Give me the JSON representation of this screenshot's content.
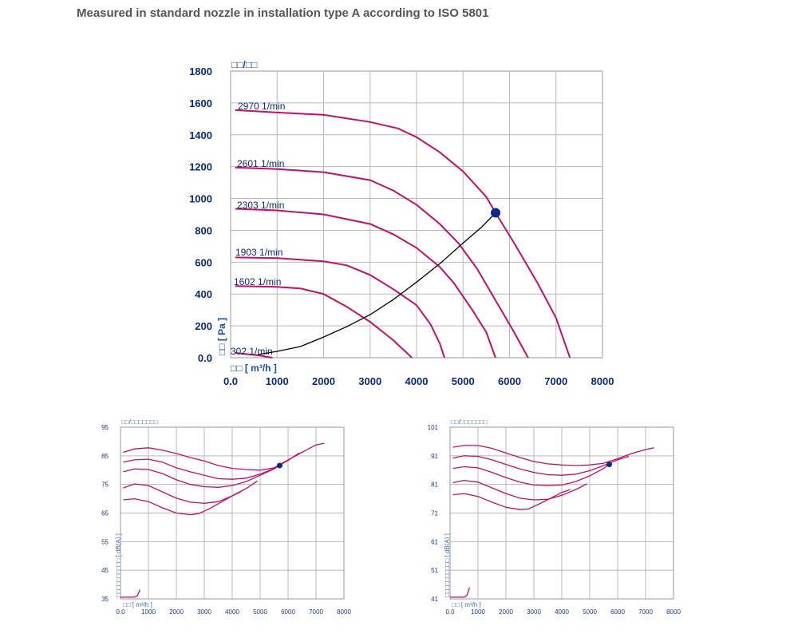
{
  "page": {
    "title": "Measured in standard nozzle in installation type A according to ISO 5801"
  },
  "colors": {
    "curve": "#c0106a",
    "operating_point": "#0a2a8a",
    "axis_text": "#0a2a78",
    "system_line": "#000000"
  },
  "chart_data": [
    {
      "id": "pressure",
      "type": "line",
      "title": "□□/□□",
      "xlabel": "□□ [ m³/h ]",
      "ylabel": "□□ [ Pa ]",
      "xlim": [
        0,
        8000
      ],
      "ylim": [
        0,
        1800
      ],
      "x_ticks": [
        "0.0",
        "1000",
        "2000",
        "3000",
        "4000",
        "5000",
        "6000",
        "7000",
        "8000"
      ],
      "y_ticks": [
        "0.0",
        "200",
        "400",
        "600",
        "800",
        "1000",
        "1200",
        "1400",
        "1600",
        "1800"
      ],
      "grid": true,
      "series": [
        {
          "name": "2970 1/min",
          "points": [
            [
              100,
              1555
            ],
            [
              1000,
              1540
            ],
            [
              2000,
              1525
            ],
            [
              3000,
              1480
            ],
            [
              3600,
              1440
            ],
            [
              4000,
              1385
            ],
            [
              4500,
              1290
            ],
            [
              5000,
              1170
            ],
            [
              5500,
              1010
            ],
            [
              5700,
              910
            ],
            [
              6100,
              720
            ],
            [
              6600,
              470
            ],
            [
              7000,
              250
            ],
            [
              7300,
              0
            ]
          ]
        },
        {
          "name": "2601 1/min",
          "points": [
            [
              100,
              1195
            ],
            [
              1000,
              1185
            ],
            [
              2000,
              1165
            ],
            [
              3000,
              1115
            ],
            [
              3500,
              1050
            ],
            [
              4000,
              960
            ],
            [
              4500,
              840
            ],
            [
              4900,
              720
            ],
            [
              5300,
              560
            ],
            [
              5700,
              360
            ],
            [
              6100,
              160
            ],
            [
              6400,
              0
            ]
          ]
        },
        {
          "name": "2303 1/min",
          "points": [
            [
              100,
              935
            ],
            [
              1000,
              925
            ],
            [
              2000,
              900
            ],
            [
              3000,
              840
            ],
            [
              3500,
              775
            ],
            [
              4000,
              690
            ],
            [
              4500,
              570
            ],
            [
              4800,
              470
            ],
            [
              5200,
              300
            ],
            [
              5500,
              160
            ],
            [
              5700,
              0
            ]
          ]
        },
        {
          "name": "1903 1/min",
          "points": [
            [
              100,
              630
            ],
            [
              1000,
              625
            ],
            [
              2000,
              605
            ],
            [
              2500,
              580
            ],
            [
              3000,
              520
            ],
            [
              3500,
              430
            ],
            [
              4000,
              330
            ],
            [
              4300,
              210
            ],
            [
              4500,
              90
            ],
            [
              4600,
              0
            ]
          ]
        },
        {
          "name": "1602 1/min",
          "points": [
            [
              100,
              450
            ],
            [
              1000,
              445
            ],
            [
              1500,
              435
            ],
            [
              2000,
              400
            ],
            [
              2500,
              320
            ],
            [
              3000,
              225
            ],
            [
              3500,
              110
            ],
            [
              3900,
              0
            ]
          ]
        },
        {
          "name": "302 1/min",
          "points": [
            [
              100,
              30
            ],
            [
              600,
              15
            ],
            [
              900,
              0
            ]
          ]
        }
      ],
      "system_curve": [
        [
          600,
          20
        ],
        [
          1000,
          40
        ],
        [
          1500,
          70
        ],
        [
          2000,
          130
        ],
        [
          2500,
          195
        ],
        [
          3000,
          270
        ],
        [
          3500,
          365
        ],
        [
          4000,
          475
        ],
        [
          4500,
          590
        ],
        [
          5000,
          720
        ],
        [
          5400,
          820
        ],
        [
          5700,
          910
        ]
      ],
      "operating_point": [
        5700,
        910
      ]
    },
    {
      "id": "sound-left",
      "type": "line",
      "title": "□□/□□□□□□□",
      "xlabel": "□□ [ m³/h ]",
      "ylabel": "□□□□□□□□□□ [ dB(A) ]",
      "xlim": [
        0,
        8000
      ],
      "ylim": [
        35,
        95
      ],
      "x_ticks": [
        "0.0",
        "1000",
        "2000",
        "3000",
        "4000",
        "5000",
        "6000",
        "7000",
        "8000"
      ],
      "y_ticks": [
        "35",
        "45",
        "55",
        "65",
        "75",
        "85",
        "95"
      ],
      "grid": true,
      "series": [
        {
          "points": [
            [
              100,
              86.2
            ],
            [
              500,
              87.4
            ],
            [
              1000,
              87.8
            ],
            [
              1500,
              87.0
            ],
            [
              2000,
              85.8
            ],
            [
              2500,
              84.4
            ],
            [
              3000,
              83.2
            ],
            [
              3500,
              81.6
            ],
            [
              4000,
              80.6
            ],
            [
              4500,
              80.2
            ],
            [
              5000,
              80.0
            ],
            [
              5500,
              80.8
            ],
            [
              6000,
              83.6
            ],
            [
              6500,
              86.2
            ],
            [
              7000,
              88.8
            ],
            [
              7300,
              89.4
            ]
          ]
        },
        {
          "points": [
            [
              100,
              82.8
            ],
            [
              500,
              83.6
            ],
            [
              1000,
              83.8
            ],
            [
              1500,
              82.8
            ],
            [
              2000,
              80.8
            ],
            [
              2500,
              79.4
            ],
            [
              3000,
              78.2
            ],
            [
              3500,
              77.0
            ],
            [
              4000,
              76.8
            ],
            [
              4500,
              77.2
            ],
            [
              5000,
              78.6
            ],
            [
              5500,
              80.6
            ],
            [
              6000,
              83.4
            ],
            [
              6400,
              86.0
            ]
          ]
        },
        {
          "points": [
            [
              100,
              79.4
            ],
            [
              500,
              80.4
            ],
            [
              1000,
              80.2
            ],
            [
              1500,
              78.8
            ],
            [
              2000,
              76.6
            ],
            [
              2500,
              75.0
            ],
            [
              3000,
              74.2
            ],
            [
              3500,
              74.0
            ],
            [
              4000,
              74.6
            ],
            [
              4500,
              76.0
            ],
            [
              5000,
              78.2
            ],
            [
              5500,
              80.4
            ],
            [
              5700,
              81.6
            ]
          ]
        },
        {
          "points": [
            [
              100,
              73.8
            ],
            [
              500,
              75.2
            ],
            [
              1000,
              74.6
            ],
            [
              1500,
              72.4
            ],
            [
              2000,
              70.2
            ],
            [
              2500,
              68.8
            ],
            [
              3000,
              68.4
            ],
            [
              3500,
              69.0
            ],
            [
              4000,
              71.0
            ],
            [
              4500,
              73.6
            ],
            [
              4900,
              76.2
            ]
          ]
        },
        {
          "points": [
            [
              100,
              69.6
            ],
            [
              500,
              70.0
            ],
            [
              1000,
              69.0
            ],
            [
              1500,
              66.8
            ],
            [
              2000,
              65.0
            ],
            [
              2500,
              64.4
            ],
            [
              2800,
              64.8
            ],
            [
              3200,
              66.6
            ],
            [
              3600,
              68.8
            ],
            [
              4000,
              71.0
            ],
            [
              4300,
              72.4
            ]
          ]
        },
        {
          "points": [
            [
              0,
              35.6
            ],
            [
              300,
              35.6
            ],
            [
              500,
              35.6
            ],
            [
              600,
              36.0
            ],
            [
              650,
              37.2
            ],
            [
              700,
              38.2
            ]
          ]
        }
      ],
      "operating_point": [
        5700,
        81.6
      ]
    },
    {
      "id": "sound-right",
      "type": "line",
      "title": "□□/□□□□□□□",
      "xlabel": "□□ [ m³/h ]",
      "ylabel": "□□□□□□□□□□ [ dB(A) ]",
      "xlim": [
        0,
        8000
      ],
      "ylim": [
        41,
        101
      ],
      "x_ticks": [
        "0.0",
        "1000",
        "2000",
        "3000",
        "4000",
        "5000",
        "6000",
        "7000",
        "8000"
      ],
      "y_ticks": [
        "41",
        "51",
        "61",
        "71",
        "81",
        "91",
        "101"
      ],
      "grid": true,
      "series": [
        {
          "points": [
            [
              100,
              94.0
            ],
            [
              500,
              94.6
            ],
            [
              1000,
              94.6
            ],
            [
              1500,
              93.6
            ],
            [
              2000,
              92.0
            ],
            [
              2500,
              90.4
            ],
            [
              3000,
              89.0
            ],
            [
              3500,
              88.2
            ],
            [
              4000,
              87.8
            ],
            [
              4500,
              87.6
            ],
            [
              5000,
              87.8
            ],
            [
              5500,
              88.4
            ],
            [
              6000,
              90.0
            ],
            [
              6500,
              91.8
            ],
            [
              7000,
              93.2
            ],
            [
              7300,
              93.8
            ]
          ]
        },
        {
          "points": [
            [
              100,
              90.2
            ],
            [
              500,
              91.0
            ],
            [
              1000,
              90.8
            ],
            [
              1500,
              89.6
            ],
            [
              2000,
              88.0
            ],
            [
              2500,
              86.4
            ],
            [
              3000,
              85.2
            ],
            [
              3500,
              84.4
            ],
            [
              4000,
              84.2
            ],
            [
              4500,
              84.6
            ],
            [
              5000,
              85.8
            ],
            [
              5500,
              87.6
            ],
            [
              6000,
              89.6
            ],
            [
              6400,
              90.8
            ]
          ]
        },
        {
          "points": [
            [
              100,
              86.6
            ],
            [
              500,
              87.2
            ],
            [
              1000,
              86.8
            ],
            [
              1500,
              85.2
            ],
            [
              2000,
              83.4
            ],
            [
              2500,
              81.8
            ],
            [
              3000,
              80.8
            ],
            [
              3500,
              80.6
            ],
            [
              4000,
              80.8
            ],
            [
              4500,
              82.0
            ],
            [
              5000,
              84.0
            ],
            [
              5500,
              86.6
            ],
            [
              5700,
              88.0
            ]
          ]
        },
        {
          "points": [
            [
              100,
              81.6
            ],
            [
              500,
              82.4
            ],
            [
              1000,
              81.8
            ],
            [
              1500,
              79.8
            ],
            [
              2000,
              77.8
            ],
            [
              2500,
              76.2
            ],
            [
              3000,
              75.6
            ],
            [
              3500,
              75.8
            ],
            [
              4000,
              77.2
            ],
            [
              4500,
              79.2
            ],
            [
              4900,
              81.2
            ]
          ]
        },
        {
          "points": [
            [
              100,
              77.4
            ],
            [
              500,
              77.8
            ],
            [
              1000,
              76.8
            ],
            [
              1500,
              74.8
            ],
            [
              2000,
              73.0
            ],
            [
              2500,
              72.2
            ],
            [
              2800,
              72.4
            ],
            [
              3200,
              74.2
            ],
            [
              3600,
              76.2
            ],
            [
              4000,
              78.2
            ],
            [
              4300,
              79.2
            ]
          ]
        },
        {
          "points": [
            [
              0,
              41.6
            ],
            [
              300,
              41.6
            ],
            [
              500,
              41.6
            ],
            [
              600,
              42.2
            ],
            [
              650,
              43.6
            ],
            [
              700,
              45.0
            ]
          ]
        }
      ],
      "operating_point": [
        5700,
        88.0
      ]
    }
  ]
}
